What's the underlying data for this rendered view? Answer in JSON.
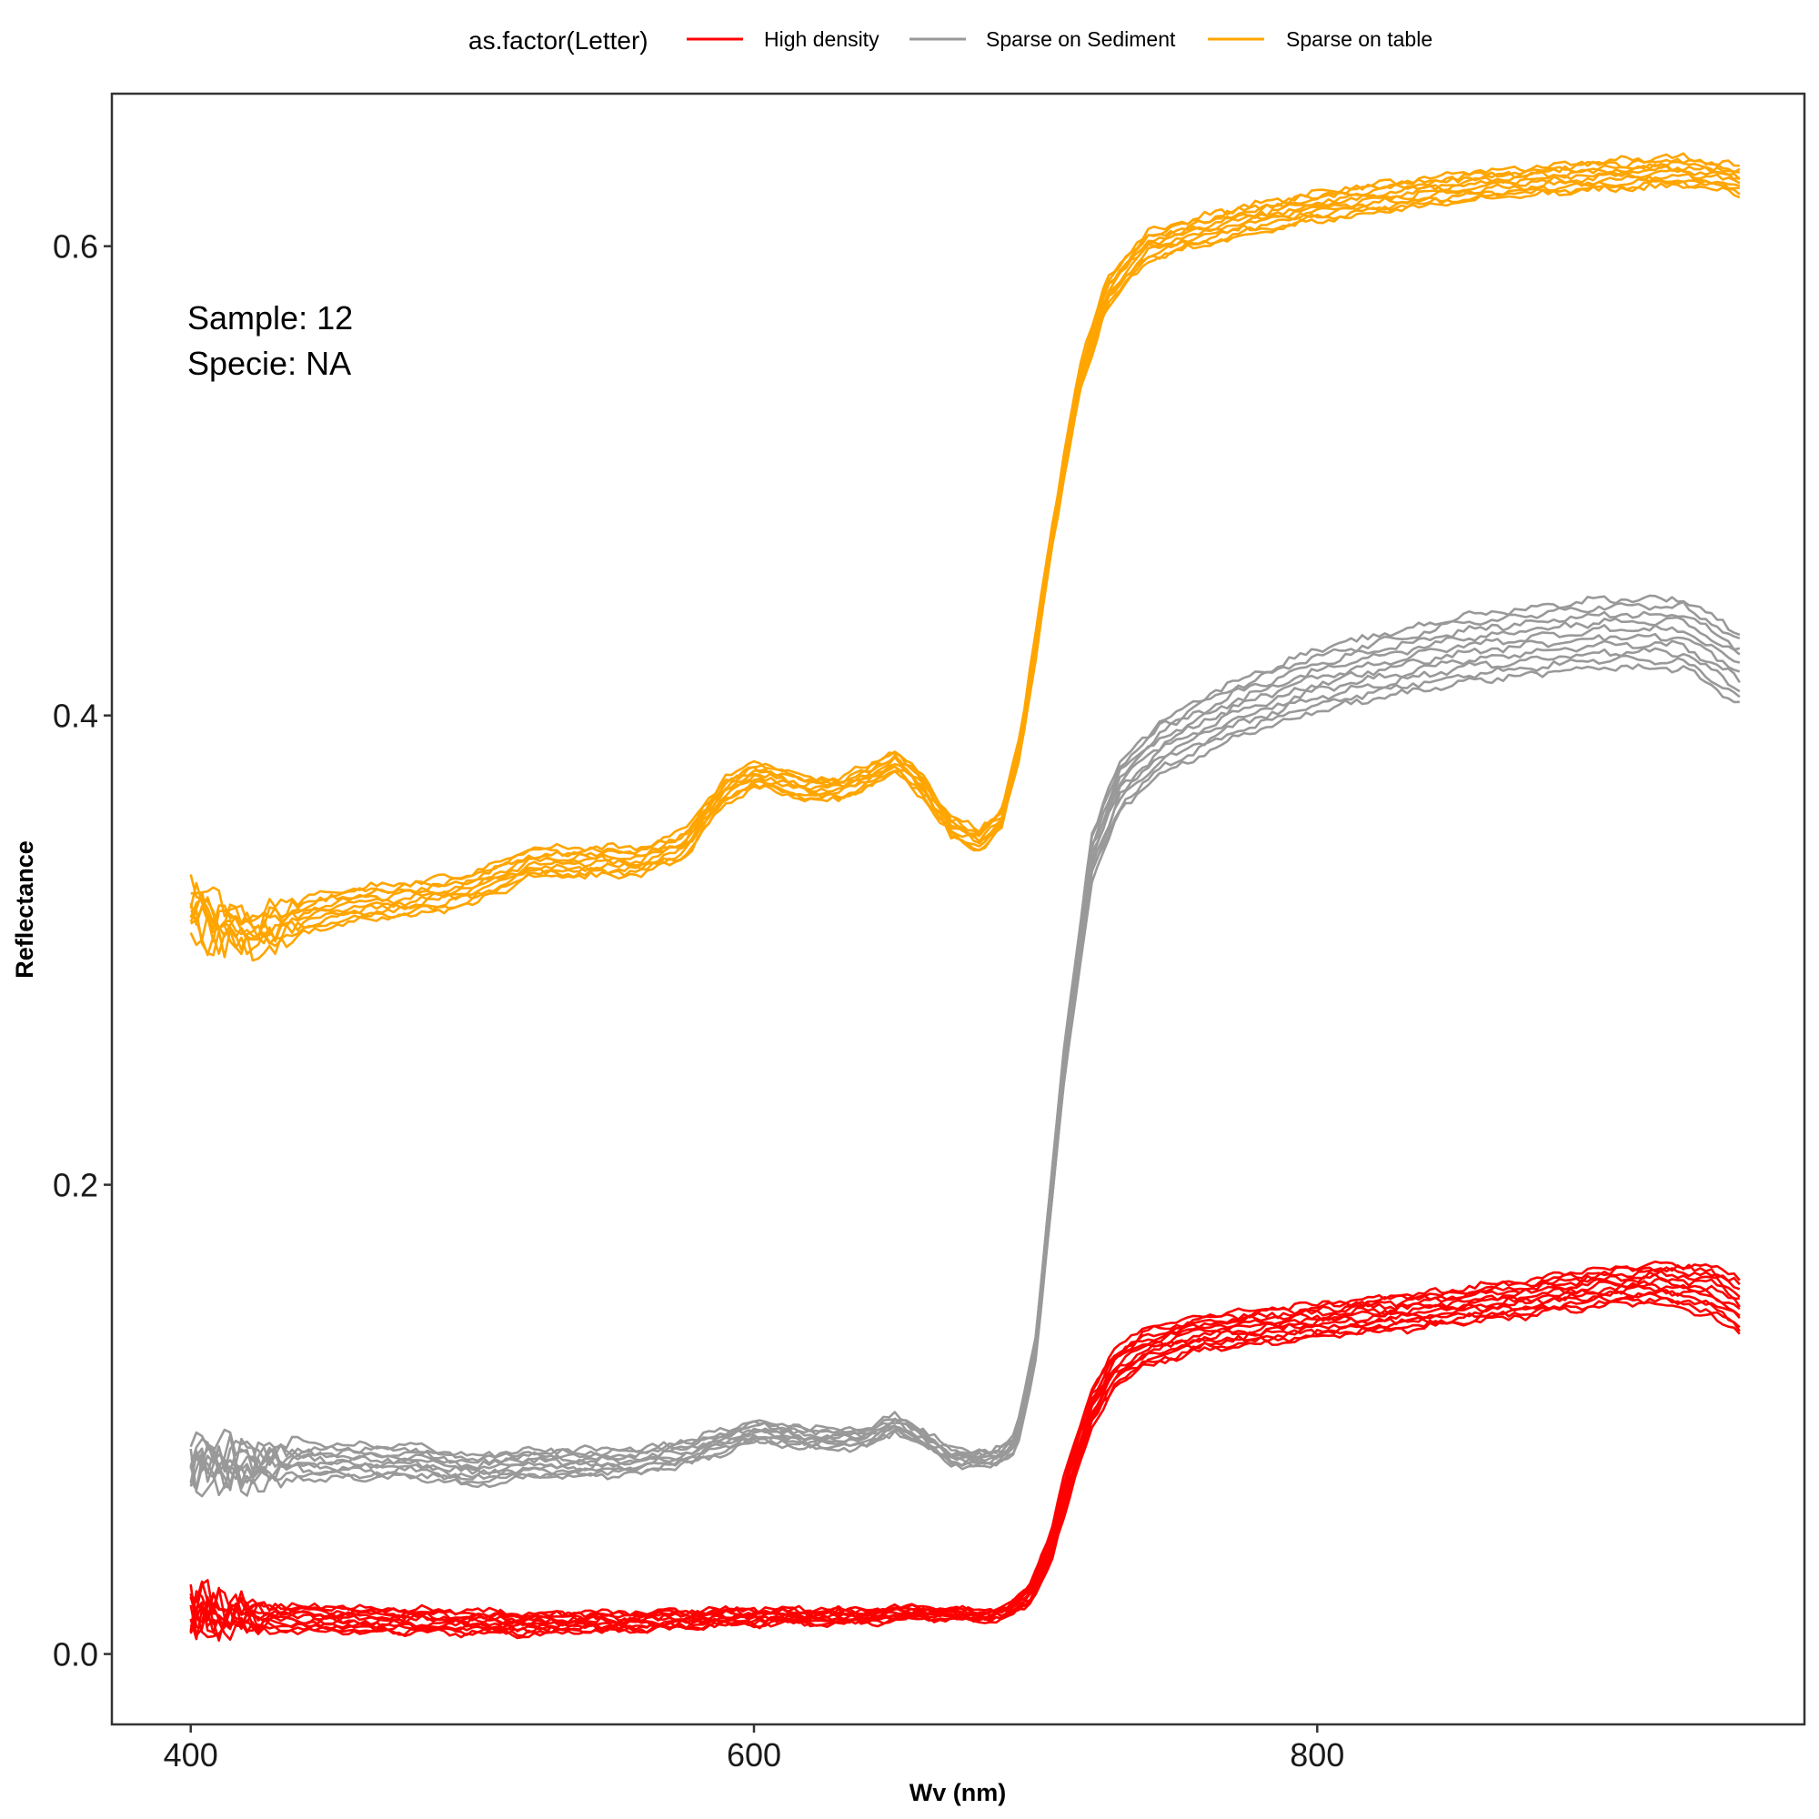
{
  "legend": {
    "title": "as.factor(Letter)",
    "entries": [
      {
        "label": "High density",
        "color": "#ff0000"
      },
      {
        "label": "Sparse on Sediment",
        "color": "#999999"
      },
      {
        "label": "Sparse on table",
        "color": "#ffa500"
      }
    ]
  },
  "annotation": {
    "line1": "Sample: 12",
    "line2": "Specie: NA"
  },
  "chart_data": {
    "type": "line",
    "xlabel": "Wv (nm)",
    "ylabel": "Reflectance",
    "xlim": [
      372,
      973
    ],
    "ylim": [
      -0.03,
      0.665
    ],
    "xticks": [
      400,
      600,
      800
    ],
    "yticks": [
      0.0,
      0.2,
      0.4,
      0.6
    ],
    "ytick_labels": [
      "0.0",
      "0.2",
      "0.4",
      "0.6"
    ],
    "grid": false,
    "legend_position": "top",
    "groups": [
      {
        "name": "High density",
        "color": "#ff0000",
        "n_lines": 12,
        "noise_below_nm": 430,
        "profile": [
          [
            400,
            0.018
          ],
          [
            420,
            0.016
          ],
          [
            440,
            0.015
          ],
          [
            480,
            0.014
          ],
          [
            520,
            0.013
          ],
          [
            560,
            0.014
          ],
          [
            600,
            0.016
          ],
          [
            640,
            0.016
          ],
          [
            660,
            0.018
          ],
          [
            680,
            0.016
          ],
          [
            690,
            0.018
          ],
          [
            698,
            0.025
          ],
          [
            705,
            0.045
          ],
          [
            712,
            0.075
          ],
          [
            720,
            0.105
          ],
          [
            728,
            0.122
          ],
          [
            740,
            0.131
          ],
          [
            760,
            0.137
          ],
          [
            800,
            0.142
          ],
          [
            850,
            0.148
          ],
          [
            900,
            0.156
          ],
          [
            920,
            0.158
          ],
          [
            940,
            0.155
          ],
          [
            950,
            0.148
          ]
        ],
        "envelope": [
          [
            400,
            0.006
          ],
          [
            690,
            0.002
          ],
          [
            710,
            0.008
          ],
          [
            730,
            0.008
          ],
          [
            800,
            0.007
          ],
          [
            920,
            0.008
          ],
          [
            950,
            0.012
          ]
        ]
      },
      {
        "name": "Sparse on Sediment",
        "color": "#999999",
        "n_lines": 10,
        "noise_below_nm": 440,
        "profile": [
          [
            400,
            0.082
          ],
          [
            420,
            0.08
          ],
          [
            440,
            0.082
          ],
          [
            480,
            0.082
          ],
          [
            500,
            0.078
          ],
          [
            520,
            0.081
          ],
          [
            560,
            0.082
          ],
          [
            580,
            0.087
          ],
          [
            600,
            0.095
          ],
          [
            620,
            0.092
          ],
          [
            640,
            0.092
          ],
          [
            650,
            0.098
          ],
          [
            660,
            0.092
          ],
          [
            670,
            0.084
          ],
          [
            685,
            0.083
          ],
          [
            693,
            0.09
          ],
          [
            700,
            0.13
          ],
          [
            710,
            0.25
          ],
          [
            720,
            0.34
          ],
          [
            730,
            0.37
          ],
          [
            745,
            0.387
          ],
          [
            770,
            0.402
          ],
          [
            800,
            0.415
          ],
          [
            850,
            0.428
          ],
          [
            900,
            0.435
          ],
          [
            930,
            0.435
          ],
          [
            950,
            0.42
          ]
        ],
        "envelope": [
          [
            400,
            0.008
          ],
          [
            690,
            0.003
          ],
          [
            720,
            0.01
          ],
          [
            760,
            0.012
          ],
          [
            850,
            0.014
          ],
          [
            950,
            0.015
          ]
        ]
      },
      {
        "name": "Sparse on table",
        "color": "#ffa500",
        "n_lines": 10,
        "noise_below_nm": 440,
        "profile": [
          [
            400,
            0.318
          ],
          [
            410,
            0.31
          ],
          [
            425,
            0.308
          ],
          [
            450,
            0.318
          ],
          [
            480,
            0.322
          ],
          [
            500,
            0.326
          ],
          [
            520,
            0.337
          ],
          [
            560,
            0.338
          ],
          [
            575,
            0.345
          ],
          [
            590,
            0.368
          ],
          [
            600,
            0.375
          ],
          [
            615,
            0.37
          ],
          [
            630,
            0.368
          ],
          [
            650,
            0.38
          ],
          [
            660,
            0.37
          ],
          [
            670,
            0.352
          ],
          [
            680,
            0.347
          ],
          [
            688,
            0.356
          ],
          [
            695,
            0.39
          ],
          [
            705,
            0.47
          ],
          [
            715,
            0.54
          ],
          [
            725,
            0.58
          ],
          [
            740,
            0.6
          ],
          [
            770,
            0.61
          ],
          [
            800,
            0.617
          ],
          [
            850,
            0.625
          ],
          [
            900,
            0.63
          ],
          [
            930,
            0.632
          ],
          [
            950,
            0.628
          ]
        ],
        "envelope": [
          [
            400,
            0.008
          ],
          [
            690,
            0.004
          ],
          [
            720,
            0.006
          ],
          [
            800,
            0.006
          ],
          [
            950,
            0.006
          ]
        ]
      }
    ]
  }
}
